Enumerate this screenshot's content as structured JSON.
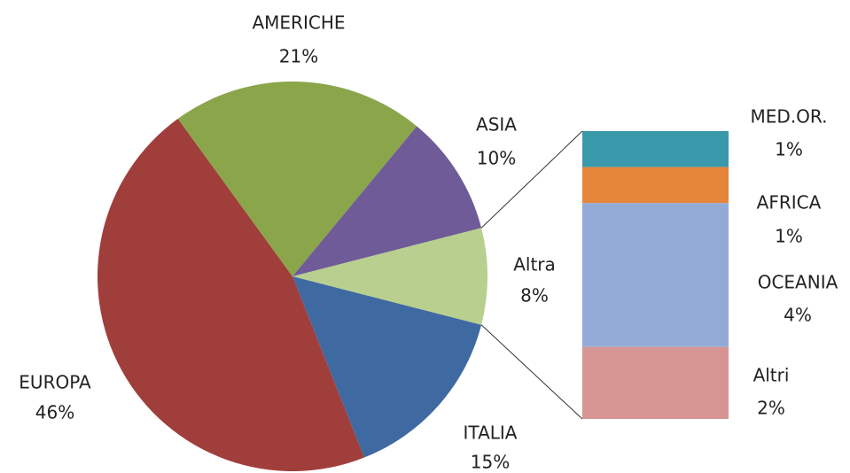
{
  "chart_data": {
    "type": "pie_of_bar",
    "categories": [
      "Altra",
      "ITALIA",
      "EUROPA",
      "AMERICHE",
      "ASIA"
    ],
    "values": [
      8,
      15,
      46,
      21,
      10
    ],
    "value_labels": [
      "8%",
      "15%",
      "46%",
      "21%",
      "10%"
    ],
    "colors": [
      "#b9cf8f",
      "#3f6aa1",
      "#a03e3b",
      "#8ba54b",
      "#6f5b97"
    ],
    "bar": {
      "categories": [
        "MED.OR.",
        "AFRICA",
        "OCEANIA",
        "Altri"
      ],
      "values": [
        1,
        1,
        4,
        2
      ],
      "value_labels": [
        "1%",
        "1%",
        "4%",
        "2%"
      ],
      "colors": [
        "#3a98ab",
        "#e5853a",
        "#94aad6",
        "#d69592"
      ]
    }
  }
}
